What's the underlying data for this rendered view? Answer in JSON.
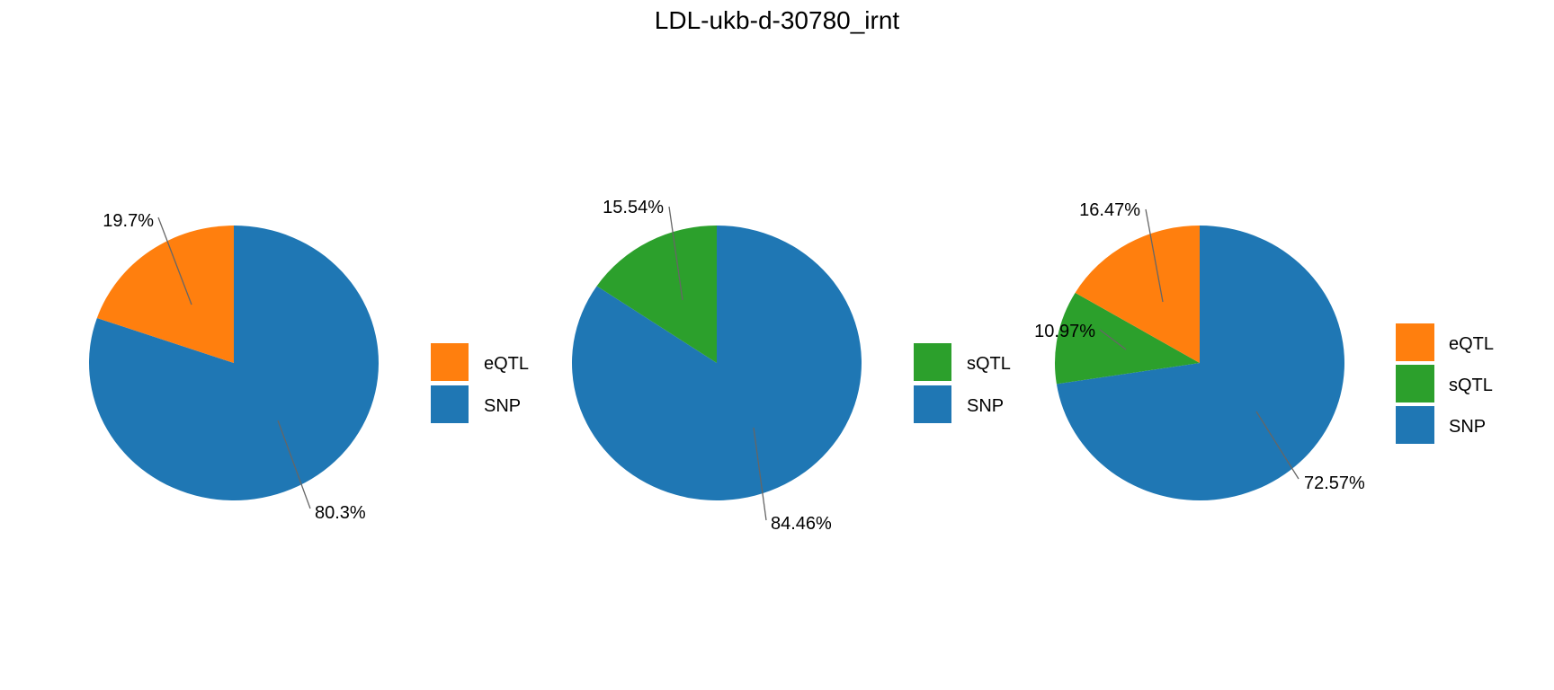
{
  "chart_data": {
    "type": "pie",
    "title": "LDL-ukb-d-30780_irnt",
    "colors": {
      "eQTL": "#ff7f0e",
      "sQTL": "#2ca02c",
      "SNP": "#1f77b4"
    },
    "charts": [
      {
        "legend": [
          "eQTL",
          "SNP"
        ],
        "slices": [
          {
            "name": "eQTL",
            "value": 19.7,
            "label": "19.7%"
          },
          {
            "name": "SNP",
            "value": 80.3,
            "label": "80.3%"
          }
        ]
      },
      {
        "legend": [
          "sQTL",
          "SNP"
        ],
        "slices": [
          {
            "name": "sQTL",
            "value": 15.54,
            "label": "15.54%"
          },
          {
            "name": "SNP",
            "value": 84.46,
            "label": "84.46%"
          }
        ]
      },
      {
        "legend": [
          "eQTL",
          "sQTL",
          "SNP"
        ],
        "slices": [
          {
            "name": "eQTL",
            "value": 16.47,
            "label": "16.47%"
          },
          {
            "name": "sQTL",
            "value": 10.97,
            "label": "10.97%"
          },
          {
            "name": "SNP",
            "value": 72.57,
            "label": "72.57%"
          }
        ]
      }
    ],
    "legend_position": "right"
  }
}
